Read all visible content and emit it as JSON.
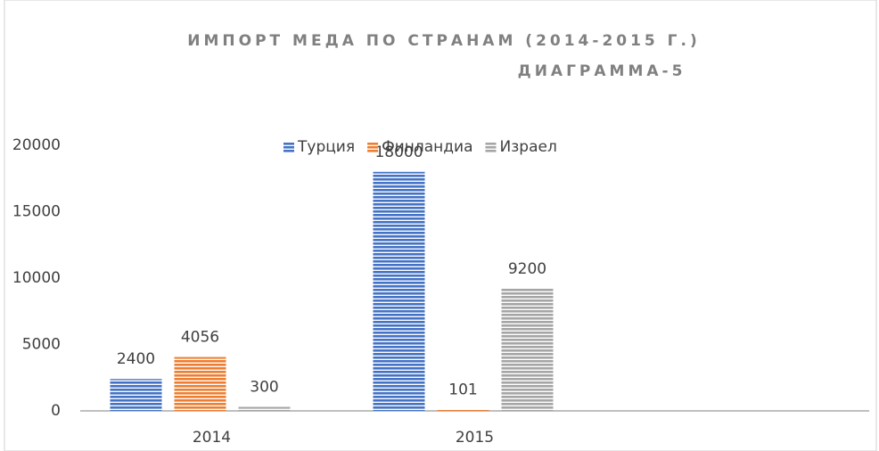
{
  "chart_data": {
    "type": "bar",
    "title": "ИМПОРТ МЕДА ПО СТРАНАМ (2014-2015 Г.)",
    "subtitle": "ДИАГРАММА-5",
    "categories": [
      "2014",
      "2015",
      null
    ],
    "series": [
      {
        "name": "Турция",
        "color": "#4472c4",
        "values": [
          2400,
          18000,
          null
        ]
      },
      {
        "name": "Финландиа",
        "color": "#ed7d31",
        "values": [
          4056,
          101,
          null
        ]
      },
      {
        "name": "Израел",
        "color": "#a5a5a5",
        "values": [
          300,
          9200,
          null
        ]
      }
    ],
    "ylim": [
      0,
      20000
    ],
    "yticks": [
      0,
      5000,
      10000,
      15000,
      20000
    ],
    "legend": "top",
    "data_labels": true
  }
}
